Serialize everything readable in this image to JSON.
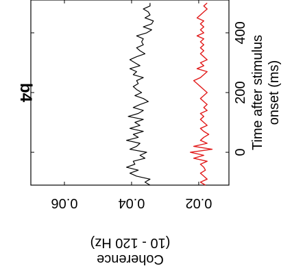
{
  "chart_data": {
    "type": "line",
    "panel_label": "b4",
    "xlabel_line1": "Time after stimulus",
    "xlabel_line2": "onset (ms)",
    "ylabel_line1": "Coherence",
    "ylabel_line2": "(10 - 120 Hz)",
    "x_ticks": [
      "0",
      "200",
      "400"
    ],
    "x_tick_values": [
      0,
      200,
      400
    ],
    "y_ticks": [
      "0.06",
      "0.04",
      "0.02"
    ],
    "y_tick_values": [
      0.06,
      0.04,
      0.02
    ],
    "xlim": [
      -110,
      510
    ],
    "ylim": [
      0.011,
      0.07
    ],
    "grid": false,
    "legend": "none",
    "series": [
      {
        "color": "#000000",
        "x": [
          -110,
          -100,
          -90,
          -80,
          -70,
          -60,
          -50,
          -40,
          -30,
          -20,
          -10,
          0,
          10,
          20,
          30,
          40,
          50,
          60,
          70,
          80,
          90,
          100,
          110,
          120,
          130,
          140,
          150,
          160,
          170,
          180,
          190,
          200,
          210,
          220,
          230,
          240,
          250,
          260,
          270,
          280,
          290,
          300,
          310,
          320,
          330,
          340,
          350,
          360,
          370,
          380,
          390,
          400,
          410,
          420,
          430,
          440,
          450,
          460,
          470,
          480,
          490,
          500
        ],
        "values": [
          0.0345,
          0.036,
          0.0345,
          0.0385,
          0.0405,
          0.038,
          0.0415,
          0.039,
          0.0395,
          0.036,
          0.0375,
          0.0355,
          0.0405,
          0.0385,
          0.0375,
          0.0415,
          0.038,
          0.0395,
          0.0365,
          0.0405,
          0.0375,
          0.039,
          0.0365,
          0.041,
          0.038,
          0.0365,
          0.0395,
          0.0375,
          0.035,
          0.0365,
          0.039,
          0.037,
          0.0385,
          0.0395,
          0.038,
          0.0385,
          0.0365,
          0.0395,
          0.0385,
          0.0405,
          0.0375,
          0.039,
          0.0405,
          0.0385,
          0.036,
          0.0375,
          0.0385,
          0.0365,
          0.037,
          0.0365,
          0.0385,
          0.0355,
          0.034,
          0.0365,
          0.034,
          0.0335,
          0.036,
          0.0345,
          0.035,
          0.0365,
          0.0345,
          0.0345
        ]
      },
      {
        "color": "#e11a1a",
        "x": [
          -110,
          -100,
          -90,
          -80,
          -70,
          -60,
          -50,
          -40,
          -30,
          -20,
          -10,
          0,
          10,
          20,
          30,
          40,
          50,
          60,
          70,
          80,
          90,
          100,
          110,
          120,
          130,
          140,
          150,
          160,
          170,
          180,
          190,
          200,
          210,
          220,
          230,
          240,
          250,
          260,
          270,
          280,
          290,
          300,
          310,
          320,
          330,
          340,
          350,
          360,
          370,
          380,
          390,
          400,
          410,
          420,
          430,
          440,
          450,
          460,
          470,
          480,
          490,
          500
        ],
        "values": [
          0.018,
          0.0195,
          0.0175,
          0.0185,
          0.0195,
          0.018,
          0.0185,
          0.0195,
          0.0175,
          0.0215,
          0.0185,
          0.0225,
          0.016,
          0.0215,
          0.0175,
          0.0195,
          0.0185,
          0.017,
          0.0185,
          0.0195,
          0.0175,
          0.0185,
          0.0195,
          0.0185,
          0.0195,
          0.0175,
          0.0185,
          0.0175,
          0.0185,
          0.0195,
          0.0185,
          0.0175,
          0.0185,
          0.0195,
          0.0205,
          0.0215,
          0.0195,
          0.0185,
          0.0175,
          0.0205,
          0.0185,
          0.0195,
          0.0175,
          0.0185,
          0.0195,
          0.0185,
          0.0195,
          0.0185,
          0.0195,
          0.0185,
          0.0205,
          0.0185,
          0.0195,
          0.0185,
          0.0195,
          0.0185,
          0.0205,
          0.0195,
          0.0185,
          0.0175,
          0.0185,
          0.0175
        ]
      }
    ]
  }
}
